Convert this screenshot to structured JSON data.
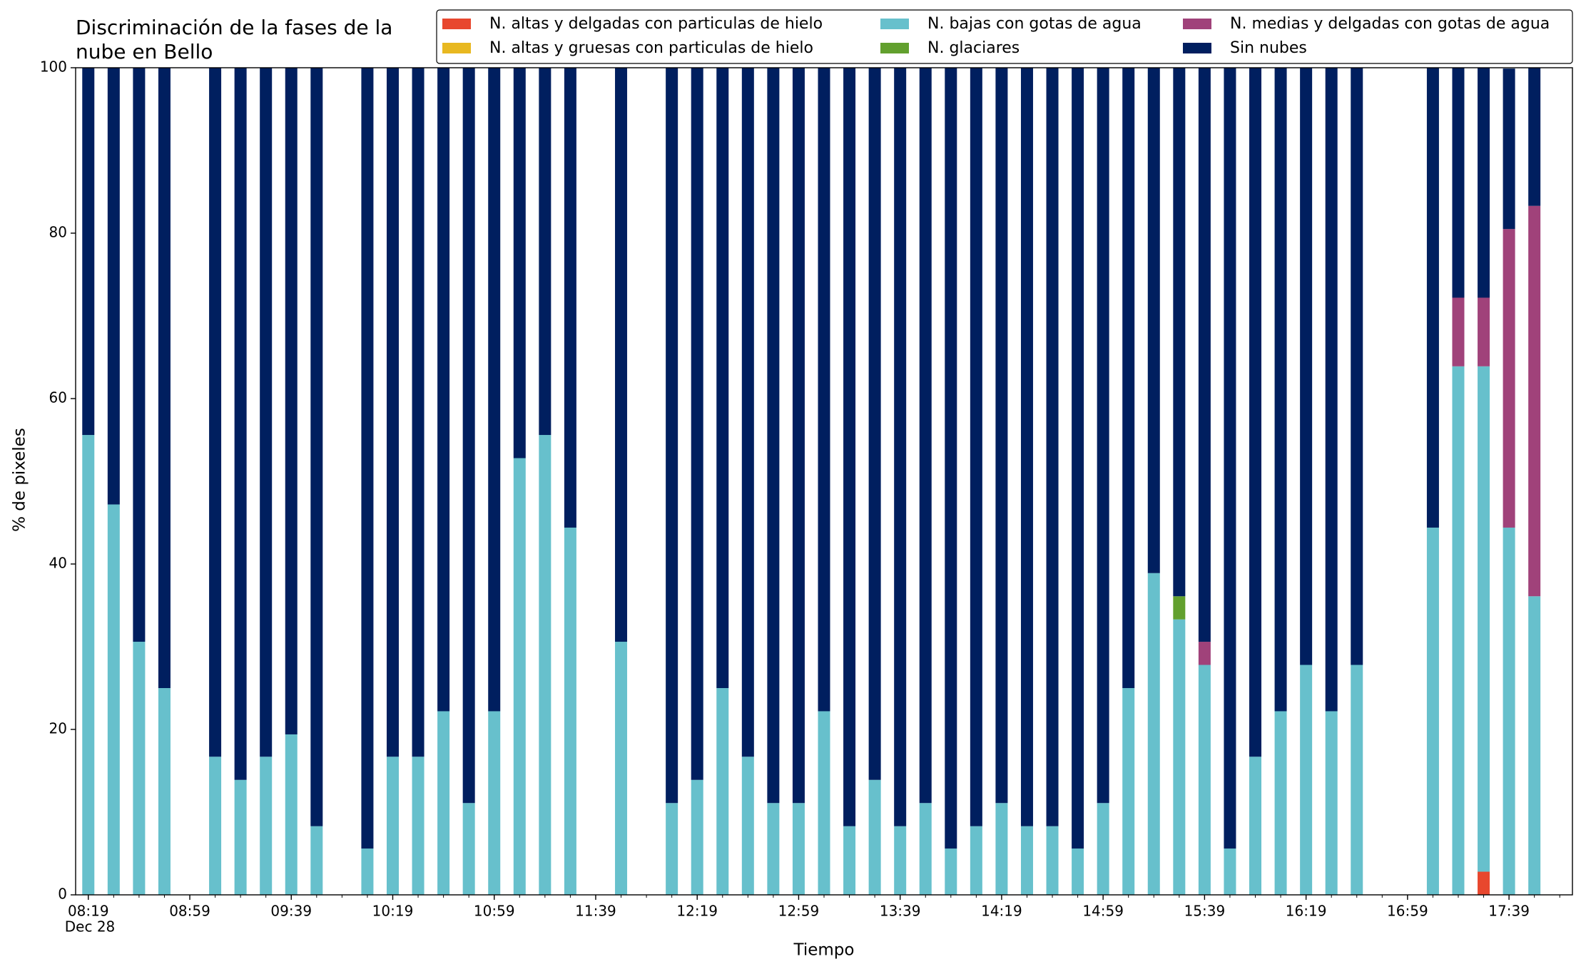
{
  "chart_data": {
    "type": "stacked_bar",
    "title": "Discriminación de la fases de la\nnube en Bello",
    "xlabel": "Tiempo",
    "ylabel": "% de pixeles",
    "x": [
      "08:19",
      "08:29",
      "08:39",
      "08:49",
      "09:09",
      "09:19",
      "09:29",
      "09:39",
      "09:49",
      "10:09",
      "10:19",
      "10:29",
      "10:39",
      "10:49",
      "10:59",
      "11:09",
      "11:19",
      "11:29",
      "11:49",
      "12:09",
      "12:19",
      "12:29",
      "12:39",
      "12:49",
      "12:59",
      "13:09",
      "13:19",
      "13:29",
      "13:39",
      "13:49",
      "13:59",
      "14:09",
      "14:19",
      "14:29",
      "14:39",
      "14:49",
      "14:59",
      "15:09",
      "15:19",
      "15:29",
      "15:39",
      "15:49",
      "15:59",
      "16:09",
      "16:19",
      "16:29",
      "16:39",
      "17:09",
      "17:19",
      "17:29",
      "17:39",
      "17:49"
    ],
    "xlim": [
      "08:14",
      "18:04"
    ],
    "xticks": [
      "08:19",
      "08:59",
      "09:39",
      "10:19",
      "10:59",
      "11:39",
      "12:19",
      "12:59",
      "13:39",
      "14:19",
      "14:59",
      "15:39",
      "16:19",
      "16:59",
      "17:39"
    ],
    "x_date_label": "Dec 28",
    "ylim": [
      0,
      100
    ],
    "yticks": [
      0,
      20,
      40,
      60,
      80,
      100
    ],
    "grid": false,
    "legend_position": "top-right",
    "series": [
      {
        "name": "N. altas y delgadas con particulas de hielo",
        "color": "#e8472e",
        "values": [
          0,
          0,
          0,
          0,
          0,
          0,
          0,
          0,
          0,
          0,
          0,
          0,
          0,
          0,
          0,
          0,
          0,
          0,
          0,
          0,
          0,
          0,
          0,
          0,
          0,
          0,
          0,
          0,
          0,
          0,
          0,
          0,
          0,
          0,
          0,
          0,
          0,
          0,
          0,
          0,
          0,
          0,
          0,
          0,
          0,
          0,
          0,
          0,
          0,
          2.8,
          0,
          0
        ]
      },
      {
        "name": "N. altas y gruesas con particulas de hielo",
        "color": "#e8b820",
        "values": [
          0,
          0,
          0,
          0,
          0,
          0,
          0,
          0,
          0,
          0,
          0,
          0,
          0,
          0,
          0,
          0,
          0,
          0,
          0,
          0,
          0,
          0,
          0,
          0,
          0,
          0,
          0,
          0,
          0,
          0,
          0,
          0,
          0,
          0,
          0,
          0,
          0,
          0,
          0,
          0,
          0,
          0,
          0,
          0,
          0,
          0,
          0,
          0,
          0,
          0,
          0,
          0
        ]
      },
      {
        "name": "N. bajas con gotas de agua",
        "color": "#67c0cc",
        "values": [
          55.6,
          47.2,
          30.6,
          25,
          16.7,
          13.9,
          16.7,
          19.4,
          8.3,
          5.6,
          16.7,
          16.7,
          22.2,
          11.1,
          22.2,
          52.8,
          55.6,
          44.4,
          30.6,
          11.1,
          13.9,
          25,
          16.7,
          11.1,
          11.1,
          22.2,
          8.3,
          13.9,
          8.3,
          11.1,
          5.6,
          8.3,
          11.1,
          8.3,
          8.3,
          5.6,
          11.1,
          25,
          38.9,
          33.3,
          27.8,
          5.6,
          16.7,
          22.2,
          27.8,
          22.2,
          27.8,
          44.4,
          63.9,
          61.1,
          44.4,
          36.1
        ]
      },
      {
        "name": "N. glaciares",
        "color": "#62a02e",
        "values": [
          0,
          0,
          0,
          0,
          0,
          0,
          0,
          0,
          0,
          0,
          0,
          0,
          0,
          0,
          0,
          0,
          0,
          0,
          0,
          0,
          0,
          0,
          0,
          0,
          0,
          0,
          0,
          0,
          0,
          0,
          0,
          0,
          0,
          0,
          0,
          0,
          0,
          0,
          0,
          2.8,
          0,
          0,
          0,
          0,
          0,
          0,
          0,
          0,
          0,
          0,
          0,
          0
        ]
      },
      {
        "name": "N. medias y delgadas con gotas de agua",
        "color": "#a0427a",
        "values": [
          0,
          0,
          0,
          0,
          0,
          0,
          0,
          0,
          0,
          0,
          0,
          0,
          0,
          0,
          0,
          0,
          0,
          0,
          0,
          0,
          0,
          0,
          0,
          0,
          0,
          0,
          0,
          0,
          0,
          0,
          0,
          0,
          0,
          0,
          0,
          0,
          0,
          0,
          0,
          0,
          2.8,
          0,
          0,
          0,
          0,
          0,
          0,
          0,
          8.3,
          8.3,
          36.1,
          47.2
        ]
      },
      {
        "name": "Sin nubes",
        "color": "#001f5f",
        "values": [
          44.4,
          52.8,
          69.4,
          75,
          83.3,
          86.1,
          83.3,
          80.6,
          91.7,
          94.4,
          83.3,
          83.3,
          77.8,
          88.9,
          77.8,
          47.2,
          44.4,
          55.6,
          69.4,
          88.9,
          86.1,
          75,
          83.3,
          88.9,
          88.9,
          77.8,
          91.7,
          86.1,
          91.7,
          88.9,
          94.4,
          91.7,
          88.9,
          91.7,
          91.7,
          94.4,
          88.9,
          75,
          61.1,
          63.9,
          69.4,
          94.4,
          83.3,
          77.8,
          72.2,
          77.8,
          72.2,
          55.6,
          27.8,
          27.8,
          19.4,
          16.7
        ]
      }
    ]
  }
}
